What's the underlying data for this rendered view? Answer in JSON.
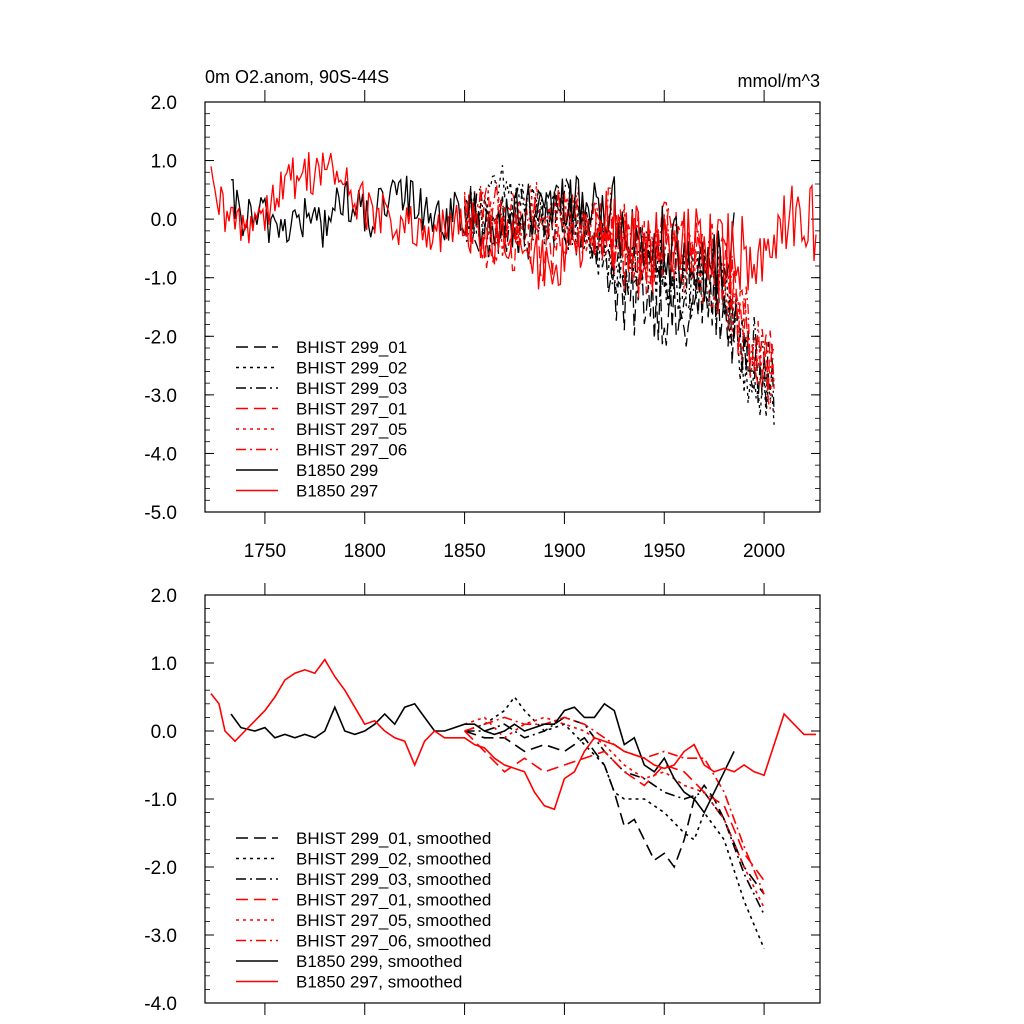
{
  "colors": {
    "black": "#000000",
    "red": "#ff0000",
    "frame": "#000000"
  },
  "chart_data": [
    {
      "type": "line",
      "title_left": "0m O2.anom, 90S-44S",
      "title_right": "mmol/m^3",
      "xlabel": "",
      "ylabel": "",
      "xlim": [
        1720,
        2028
      ],
      "ylim": [
        -5.0,
        2.0
      ],
      "x_ticks": [
        1750,
        1800,
        1850,
        1900,
        1950,
        2000
      ],
      "x_tick_labels": [
        "1750",
        "1800",
        "1850",
        "1900",
        "1950",
        "2000"
      ],
      "y_ticks": [
        2.0,
        1.0,
        0.0,
        -1.0,
        -2.0,
        -3.0,
        -4.0,
        -5.0
      ],
      "y_tick_labels": [
        "2.0",
        "1.0",
        "0.0",
        "-1.0",
        "-2.0",
        "-3.0",
        "-4.0",
        "-5.0"
      ],
      "legend_position": "lower-left",
      "series": [
        {
          "name": "BHIST 299_01",
          "color": "#000000",
          "dash": "dash",
          "x": [
            1850,
            1860,
            1870,
            1880,
            1890,
            1900,
            1910,
            1920,
            1925,
            1930,
            1940,
            1950,
            1960,
            1970,
            1980,
            1990,
            2000,
            2005
          ],
          "y": [
            0.0,
            -0.3,
            -0.1,
            -0.4,
            0.1,
            -0.2,
            0.0,
            -0.5,
            -1.0,
            -1.6,
            -1.2,
            -1.5,
            -1.9,
            -1.3,
            -1.5,
            -2.4,
            -2.7,
            -2.8
          ]
        },
        {
          "name": "BHIST 299_02",
          "color": "#000000",
          "dash": "dot",
          "x": [
            1850,
            1860,
            1870,
            1880,
            1890,
            1900,
            1910,
            1920,
            1930,
            1940,
            1950,
            1960,
            1970,
            1980,
            1990,
            2000,
            2005
          ],
          "y": [
            0.1,
            0.2,
            0.5,
            0.3,
            -0.1,
            0.0,
            -0.3,
            -0.6,
            -1.0,
            -0.8,
            -1.0,
            -1.2,
            -0.9,
            -1.4,
            -2.4,
            -3.0,
            -3.3
          ]
        },
        {
          "name": "BHIST 299_03",
          "color": "#000000",
          "dash": "dashdot",
          "x": [
            1850,
            1860,
            1870,
            1880,
            1890,
            1900,
            1910,
            1920,
            1930,
            1940,
            1950,
            1960,
            1970,
            1980,
            1990,
            2000,
            2005
          ],
          "y": [
            0.0,
            0.1,
            -0.1,
            0.2,
            -0.1,
            0.2,
            0.0,
            -0.4,
            -0.7,
            -0.6,
            -0.9,
            -1.1,
            -0.8,
            -1.2,
            -2.1,
            -2.6,
            -2.7
          ]
        },
        {
          "name": "BHIST 297_01",
          "color": "#ff0000",
          "dash": "dash",
          "x": [
            1850,
            1860,
            1870,
            1880,
            1890,
            1900,
            1910,
            1920,
            1930,
            1940,
            1950,
            1960,
            1970,
            1980,
            1990,
            2000,
            2005
          ],
          "y": [
            0.0,
            -0.4,
            -0.5,
            -0.3,
            -0.6,
            -0.5,
            -0.3,
            -0.2,
            -0.6,
            -0.7,
            -0.4,
            -0.5,
            -0.8,
            -1.0,
            -1.9,
            -2.4,
            -2.6
          ]
        },
        {
          "name": "BHIST 297_05",
          "color": "#ff0000",
          "dash": "dot",
          "x": [
            1850,
            1860,
            1870,
            1880,
            1890,
            1900,
            1910,
            1920,
            1930,
            1940,
            1950,
            1960,
            1970,
            1980,
            1990,
            2000,
            2005
          ],
          "y": [
            0.1,
            0.2,
            -0.2,
            0.1,
            0.2,
            0.1,
            -0.1,
            -0.3,
            -0.5,
            -0.8,
            -0.6,
            -0.7,
            -0.9,
            -1.2,
            -2.0,
            -2.6,
            -2.8
          ]
        },
        {
          "name": "BHIST 297_06",
          "color": "#ff0000",
          "dash": "dashdot",
          "x": [
            1850,
            1860,
            1870,
            1880,
            1890,
            1900,
            1910,
            1920,
            1930,
            1940,
            1950,
            1960,
            1970,
            1980,
            1990,
            2000,
            2005
          ],
          "y": [
            0.0,
            0.1,
            0.2,
            0.0,
            0.1,
            0.2,
            0.1,
            -0.1,
            -0.3,
            -0.5,
            -0.3,
            -0.5,
            -0.4,
            -0.9,
            -1.7,
            -2.2,
            -2.5
          ]
        },
        {
          "name": "B1850 299",
          "color": "#000000",
          "dash": "solid",
          "x": [
            1733,
            1740,
            1750,
            1760,
            1770,
            1780,
            1790,
            1800,
            1810,
            1820,
            1830,
            1840,
            1850,
            1860,
            1870,
            1880,
            1890,
            1900,
            1910,
            1920,
            1930,
            1940,
            1950,
            1960,
            1970,
            1980,
            1985
          ],
          "y": [
            0.3,
            0.0,
            0.0,
            -0.1,
            0.0,
            -0.1,
            0.4,
            0.0,
            0.2,
            0.4,
            0.2,
            0.0,
            0.1,
            0.0,
            -0.1,
            0.1,
            0.0,
            0.3,
            0.2,
            0.3,
            -0.2,
            -0.5,
            -0.4,
            -0.8,
            -1.1,
            -0.6,
            -0.3
          ]
        },
        {
          "name": "B1850 297",
          "color": "#ff0000",
          "dash": "solid",
          "x": [
            1723,
            1730,
            1740,
            1750,
            1760,
            1770,
            1780,
            1790,
            1800,
            1810,
            1820,
            1830,
            1840,
            1850,
            1860,
            1870,
            1880,
            1890,
            1900,
            1910,
            1920,
            1930,
            1940,
            1950,
            1960,
            1970,
            1980,
            1990,
            2000,
            2010,
            2020,
            2026
          ],
          "y": [
            0.5,
            0.0,
            -0.1,
            0.2,
            0.6,
            0.8,
            0.9,
            0.6,
            0.2,
            0.0,
            -0.1,
            -0.4,
            -0.2,
            -0.1,
            -0.2,
            -0.4,
            -0.6,
            -0.8,
            -0.7,
            -0.4,
            -0.2,
            -0.2,
            -0.4,
            -0.6,
            -0.5,
            -0.3,
            -0.6,
            -0.6,
            -0.5,
            0.1,
            -0.1,
            0.0
          ]
        }
      ],
      "noise": {
        "amplitude_pre_1850": 0.42,
        "amplitude_post_1850": 0.5
      }
    },
    {
      "type": "line",
      "title_left": "",
      "title_right": "",
      "xlabel": "",
      "ylabel": "",
      "xlim": [
        1720,
        2028
      ],
      "ylim": [
        -4.0,
        2.0
      ],
      "x_ticks": [
        1750,
        1800,
        1850,
        1900,
        1950,
        2000
      ],
      "x_tick_labels": [],
      "y_ticks": [
        2.0,
        1.0,
        0.0,
        -1.0,
        -2.0,
        -3.0,
        -4.0
      ],
      "y_tick_labels": [
        "2.0",
        "1.0",
        "0.0",
        "-1.0",
        "-2.0",
        "-3.0",
        "-4.0"
      ],
      "legend_position": "lower-left",
      "series": [
        {
          "name": "BHIST 299_01, smoothed",
          "color": "#000000",
          "dash": "dash",
          "x": [
            1850,
            1860,
            1870,
            1880,
            1890,
            1900,
            1910,
            1920,
            1925,
            1930,
            1935,
            1940,
            1945,
            1950,
            1955,
            1960,
            1965,
            1970,
            1975,
            1980,
            1990,
            2000
          ],
          "y": [
            0.0,
            -0.1,
            -0.1,
            -0.3,
            -0.2,
            -0.3,
            -0.1,
            -0.5,
            -0.9,
            -1.4,
            -1.3,
            -1.6,
            -1.9,
            -1.8,
            -2.0,
            -1.6,
            -1.0,
            -0.8,
            -1.0,
            -1.3,
            -2.0,
            -2.4
          ]
        },
        {
          "name": "BHIST 299_02, smoothed",
          "color": "#000000",
          "dash": "dot",
          "x": [
            1850,
            1860,
            1870,
            1875,
            1880,
            1890,
            1900,
            1910,
            1920,
            1925,
            1930,
            1940,
            1950,
            1960,
            1965,
            1970,
            1980,
            1990,
            2000
          ],
          "y": [
            0.0,
            0.1,
            0.3,
            0.5,
            0.3,
            0.0,
            0.1,
            -0.2,
            -0.5,
            -0.9,
            -1.0,
            -1.0,
            -1.2,
            -1.5,
            -1.6,
            -1.2,
            -1.6,
            -2.5,
            -3.2
          ]
        },
        {
          "name": "BHIST 299_03, smoothed",
          "color": "#000000",
          "dash": "dashdot",
          "x": [
            1850,
            1860,
            1870,
            1880,
            1890,
            1900,
            1910,
            1920,
            1930,
            1940,
            1950,
            1960,
            1970,
            1980,
            1990,
            2000
          ],
          "y": [
            0.0,
            0.0,
            0.1,
            -0.1,
            0.0,
            0.2,
            0.1,
            -0.3,
            -0.6,
            -0.7,
            -0.9,
            -1.0,
            -0.9,
            -1.3,
            -2.1,
            -2.7
          ]
        },
        {
          "name": "BHIST 297_01, smoothed",
          "color": "#ff0000",
          "dash": "dash",
          "x": [
            1850,
            1860,
            1870,
            1880,
            1890,
            1900,
            1910,
            1920,
            1930,
            1940,
            1950,
            1960,
            1970,
            1980,
            1990,
            2000
          ],
          "y": [
            0.0,
            -0.3,
            -0.6,
            -0.4,
            -0.6,
            -0.5,
            -0.4,
            -0.3,
            -0.6,
            -0.8,
            -0.5,
            -0.6,
            -0.9,
            -1.1,
            -1.8,
            -2.2
          ]
        },
        {
          "name": "BHIST 297_05, smoothed",
          "color": "#ff0000",
          "dash": "dot",
          "x": [
            1850,
            1860,
            1870,
            1880,
            1890,
            1900,
            1910,
            1920,
            1930,
            1940,
            1950,
            1960,
            1970,
            1980,
            1990,
            2000
          ],
          "y": [
            0.1,
            0.2,
            -0.1,
            0.1,
            0.2,
            0.1,
            0.0,
            -0.2,
            -0.5,
            -0.7,
            -0.6,
            -0.8,
            -0.9,
            -1.3,
            -2.0,
            -2.6
          ]
        },
        {
          "name": "BHIST 297_06, smoothed",
          "color": "#ff0000",
          "dash": "dashdot",
          "x": [
            1850,
            1860,
            1870,
            1880,
            1890,
            1900,
            1910,
            1920,
            1930,
            1940,
            1950,
            1960,
            1970,
            1980,
            1990,
            2000
          ],
          "y": [
            0.0,
            0.1,
            0.2,
            0.1,
            0.1,
            0.2,
            0.1,
            -0.1,
            -0.3,
            -0.4,
            -0.3,
            -0.4,
            -0.4,
            -0.9,
            -1.7,
            -2.4
          ]
        },
        {
          "name": "B1850 299, smoothed",
          "color": "#000000",
          "dash": "solid",
          "x": [
            1733,
            1738,
            1745,
            1750,
            1755,
            1760,
            1765,
            1770,
            1775,
            1780,
            1785,
            1790,
            1795,
            1800,
            1805,
            1810,
            1815,
            1820,
            1825,
            1830,
            1835,
            1840,
            1845,
            1850,
            1855,
            1860,
            1865,
            1870,
            1875,
            1880,
            1885,
            1890,
            1895,
            1900,
            1905,
            1910,
            1915,
            1920,
            1925,
            1930,
            1935,
            1940,
            1945,
            1950,
            1955,
            1960,
            1965,
            1970,
            1975,
            1980,
            1985
          ],
          "y": [
            0.25,
            0.05,
            0.0,
            0.05,
            -0.1,
            -0.05,
            -0.1,
            -0.05,
            -0.1,
            0.0,
            0.35,
            0.0,
            -0.05,
            0.0,
            0.1,
            0.25,
            0.1,
            0.35,
            0.4,
            0.2,
            0.0,
            0.0,
            0.05,
            0.1,
            0.1,
            0.0,
            -0.05,
            0.0,
            0.1,
            0.0,
            0.05,
            0.1,
            0.1,
            0.3,
            0.35,
            0.2,
            0.2,
            0.4,
            0.3,
            -0.2,
            -0.1,
            -0.5,
            -0.6,
            -0.4,
            -0.7,
            -0.9,
            -1.0,
            -1.2,
            -0.9,
            -0.6,
            -0.3
          ]
        },
        {
          "name": "B1850 297, smoothed",
          "color": "#ff0000",
          "dash": "solid",
          "x": [
            1723,
            1727,
            1730,
            1735,
            1740,
            1745,
            1750,
            1755,
            1760,
            1765,
            1770,
            1775,
            1780,
            1785,
            1790,
            1795,
            1800,
            1805,
            1810,
            1815,
            1820,
            1825,
            1830,
            1835,
            1840,
            1845,
            1850,
            1855,
            1860,
            1865,
            1870,
            1875,
            1880,
            1885,
            1890,
            1895,
            1900,
            1905,
            1910,
            1915,
            1920,
            1925,
            1930,
            1935,
            1940,
            1945,
            1950,
            1955,
            1960,
            1965,
            1970,
            1975,
            1980,
            1985,
            1990,
            1995,
            2000,
            2005,
            2010,
            2015,
            2020,
            2026
          ],
          "y": [
            0.55,
            0.4,
            0.0,
            -0.15,
            0.0,
            0.15,
            0.3,
            0.5,
            0.75,
            0.85,
            0.9,
            0.85,
            1.05,
            0.8,
            0.6,
            0.35,
            0.1,
            0.15,
            0.0,
            -0.1,
            -0.15,
            -0.5,
            -0.15,
            0.0,
            -0.1,
            -0.1,
            -0.1,
            -0.2,
            -0.25,
            -0.4,
            -0.5,
            -0.55,
            -0.6,
            -0.9,
            -1.1,
            -1.15,
            -0.7,
            -0.6,
            -0.3,
            -0.1,
            -0.15,
            -0.2,
            -0.3,
            -0.35,
            -0.4,
            -0.5,
            -0.55,
            -0.5,
            -0.3,
            -0.2,
            -0.5,
            -0.6,
            -0.55,
            -0.6,
            -0.5,
            -0.6,
            -0.65,
            -0.2,
            0.25,
            0.1,
            -0.05,
            -0.05
          ]
        }
      ]
    }
  ]
}
